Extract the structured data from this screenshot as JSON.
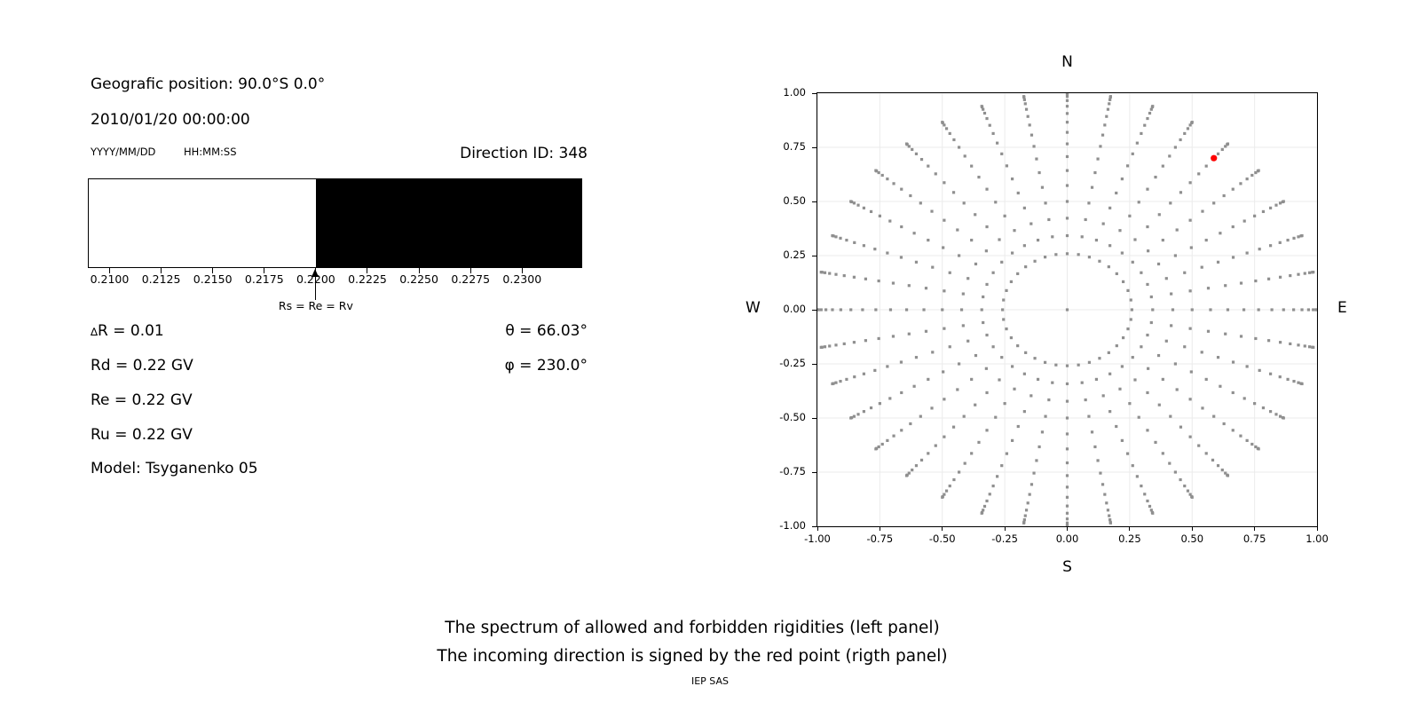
{
  "left_panel": {
    "geo_position": "Geografic position: 90.0°S 0.0°",
    "datetime": "2010/01/20 00:00:00",
    "date_format": "YYYY/MM/DD",
    "time_format": "HH:MM:SS",
    "params": {
      "delta_symbol": "∆",
      "delta_rest": "R = 0.01",
      "rd": "Rd = 0.22 GV",
      "re": "Re = 0.22 GV",
      "ru": "Ru = 0.22 GV",
      "theta": "θ = 66.03°",
      "phi": "φ = 230.0°",
      "model": "Model: Tsyganenko 05"
    }
  },
  "captions": {
    "line1": "The spectrum of allowed and forbidden rigidities (left panel)",
    "line2": "The incoming direction is signed by the red point (rigth panel)",
    "credit": "IEP SAS"
  },
  "chart_data": [
    {
      "type": "bar",
      "panel": "left",
      "title": "Direction ID: 348",
      "xlim": [
        0.20899,
        0.23287
      ],
      "x_ticks": [
        "0.2100",
        "0.2125",
        "0.2150",
        "0.2175",
        "0.2200",
        "0.2225",
        "0.2250",
        "0.2275",
        "0.2300"
      ],
      "segments": [
        {
          "x_from": 0.20899,
          "x_to": 0.22,
          "color": "#ffffff",
          "meaning": "allowed rigidities"
        },
        {
          "x_from": 0.22,
          "x_to": 0.23287,
          "color": "#000000",
          "meaning": "forbidden rigidities"
        }
      ],
      "annotation": {
        "text": "Rs = Re = Rv",
        "x": 0.22
      }
    },
    {
      "type": "scatter",
      "panel": "right",
      "compass": {
        "top": "N",
        "bottom": "S",
        "left": "W",
        "right": "E"
      },
      "xlim": [
        -1,
        1
      ],
      "ylim": [
        -1,
        1
      ],
      "x_ticks": [
        "-1.00",
        "-0.75",
        "-0.50",
        "-0.25",
        "0.00",
        "0.25",
        "0.50",
        "0.75",
        "1.00"
      ],
      "y_ticks": [
        "1.00",
        "0.75",
        "0.50",
        "0.25",
        "0.00",
        "-0.25",
        "-0.50",
        "-0.75",
        "-1.00"
      ],
      "grid": true,
      "grid_color": "#ebebeb",
      "direction_grid": {
        "azimuth_start_deg": 0,
        "azimuth_step_deg": 10,
        "azimuth_count": 36,
        "zenith_start_deg": 15,
        "zenith_step_deg": 5,
        "zenith_end_deg": 90,
        "radius_mapping": "sin(zenith)",
        "center_dot": true,
        "dot_color": "#8f8f8f"
      },
      "red_point": {
        "x": 0.587,
        "y": 0.7,
        "theta_deg": 66.03,
        "phi_deg": 230.0,
        "color": "#ff0000",
        "meaning": "incoming direction"
      }
    }
  ]
}
